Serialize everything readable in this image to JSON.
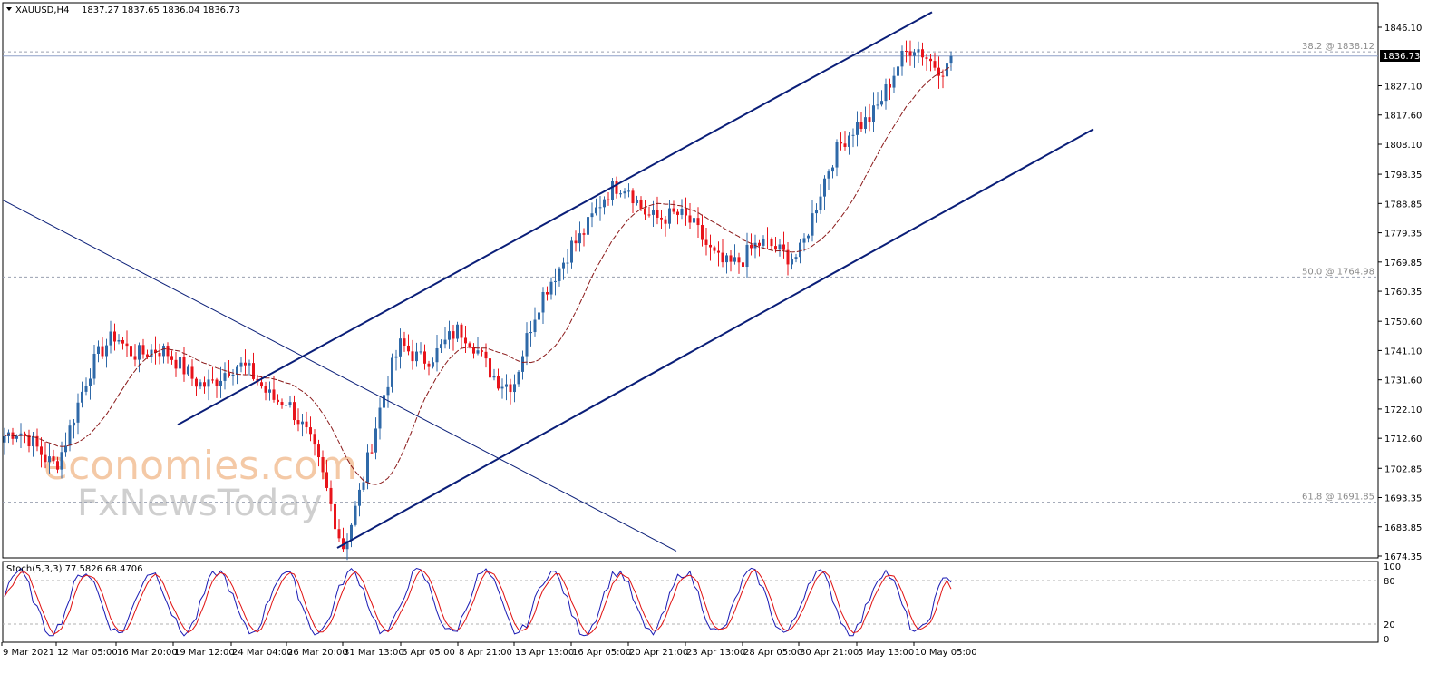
{
  "header": {
    "symbol": "XAUUSD,H4",
    "ohlc": "1837.27 1837.65 1836.04 1836.73"
  },
  "price_panel": {
    "current_price_label": "1836.73",
    "fib_levels": [
      {
        "label": "38.2 @ 1838.12",
        "price": 1838.12
      },
      {
        "label": "50.0 @ 1764.98",
        "price": 1764.98
      },
      {
        "label": "61.8 @ 1691.85",
        "price": 1691.85
      }
    ]
  },
  "stoch_panel": {
    "label": "Stoch(5,3,3) 77.5826 68.4706",
    "levels_labels": [
      "100",
      "80",
      "20",
      "0"
    ]
  },
  "watermark": {
    "line1": "economies.com",
    "line2": "FxNewsToday"
  },
  "colors": {
    "bull": "#2f69a8",
    "bear": "#e8141b",
    "channel": "#0a1e78",
    "ma": "#8b1a1a",
    "stoch_main": "#1a1ab4",
    "stoch_signal": "#e01010",
    "grid_dash": "#9aa0b0"
  },
  "chart_data": {
    "type": "candlestick",
    "symbol": "XAUUSD",
    "timeframe": "H4",
    "yaxis_ticks": [
      "1846.10",
      "1836.73",
      "1827.10",
      "1817.60",
      "1808.10",
      "1798.35",
      "1788.85",
      "1779.35",
      "1769.85",
      "1760.35",
      "1750.60",
      "1741.10",
      "1731.60",
      "1722.10",
      "1712.60",
      "1702.85",
      "1693.35",
      "1683.85",
      "1674.35"
    ],
    "ylim": [
      1674.35,
      1846.1
    ],
    "xaxis_ticks": [
      "9 Mar 2021",
      "12 Mar 05:00",
      "16 Mar 20:00",
      "19 Mar 12:00",
      "24 Mar 04:00",
      "26 Mar 20:00",
      "31 Mar 13:00",
      "6 Apr 05:00",
      "8 Apr 21:00",
      "13 Apr 13:00",
      "16 Apr 05:00",
      "20 Apr 21:00",
      "23 Apr 13:00",
      "28 Apr 05:00",
      "30 Apr 21:00",
      "5 May 13:00",
      "10 May 05:00"
    ],
    "last_close": 1836.73,
    "price_path_keypoints": [
      {
        "x": "9 Mar 2021",
        "y": 1712
      },
      {
        "x": "12 Mar 05:00",
        "y": 1708
      },
      {
        "x": "16 Mar 20:00",
        "y": 1748
      },
      {
        "x": "19 Mar 12:00",
        "y": 1735
      },
      {
        "x": "24 Mar 04:00",
        "y": 1733
      },
      {
        "x": "26 Mar 20:00",
        "y": 1728
      },
      {
        "x": "31 Mar 13:00",
        "y": 1680
      },
      {
        "x": "6 Apr 05:00",
        "y": 1741
      },
      {
        "x": "8 Apr 21:00",
        "y": 1744
      },
      {
        "x": "13 Apr 13:00",
        "y": 1732
      },
      {
        "x": "16 Apr 05:00",
        "y": 1779
      },
      {
        "x": "20 Apr 21:00",
        "y": 1794
      },
      {
        "x": "23 Apr 13:00",
        "y": 1780
      },
      {
        "x": "28 Apr 05:00",
        "y": 1770
      },
      {
        "x": "30 Apr 21:00",
        "y": 1776
      },
      {
        "x": "5 May 13:00",
        "y": 1816
      },
      {
        "x": "10 May 05:00",
        "y": 1836.73
      }
    ],
    "indicator": {
      "name": "Stoch(5,3,3)",
      "main": 77.5826,
      "signal": 68.4706,
      "levels": [
        20,
        80
      ],
      "ylim": [
        0,
        100
      ]
    },
    "fibonacci": [
      {
        "level": 38.2,
        "price": 1838.12
      },
      {
        "level": 50.0,
        "price": 1764.98
      },
      {
        "level": 61.8,
        "price": 1691.85
      }
    ],
    "trendlines": [
      {
        "name": "channel-upper",
        "from": {
          "x": "19 Mar 12:00",
          "y": 1717
        },
        "to": {
          "x": "10 May 05:00",
          "y": 1851
        }
      },
      {
        "name": "channel-lower",
        "from": {
          "x": "31 Mar 13:00",
          "y": 1677
        },
        "to": {
          "x": "10 May 05:00",
          "y": 1813
        }
      },
      {
        "name": "downtrend",
        "from": {
          "x": "9 Mar 2021",
          "y": 1790
        },
        "to": {
          "x": "13 Apr 13:00",
          "y": 1676
        }
      }
    ]
  }
}
